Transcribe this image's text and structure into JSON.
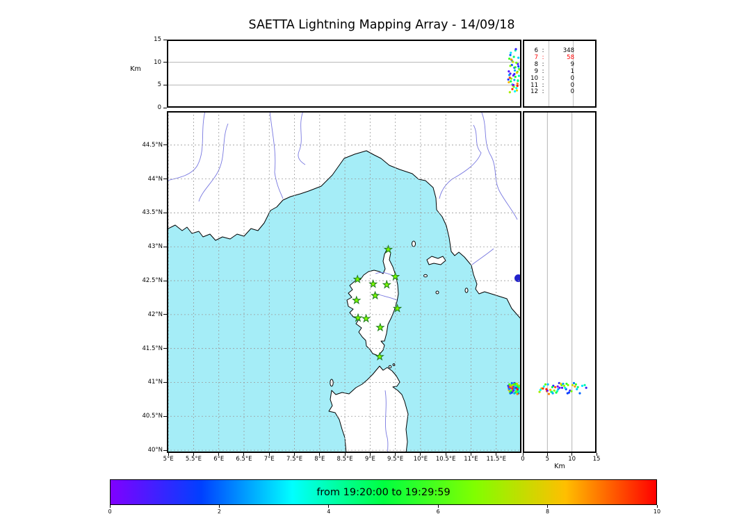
{
  "title": "SAETTA Lightning Mapping Array - 14/09/18",
  "colors": {
    "sea": "#a5edf7",
    "land": "#ffffff",
    "coastline": "#000000",
    "river": "#7878e0",
    "lake": "#2121cc",
    "grid_dashed": "#9a9a9a",
    "grid_solid": "#b4b4b4",
    "frame": "#000000",
    "station_fill": "#7CFC00",
    "station_edge": "#1d7a1d",
    "highlight_text": "#ff0000"
  },
  "chart_data": {
    "type": "scatter",
    "title": "SAETTA Lightning Mapping Array - 14/09/18",
    "date": "14/09/18",
    "top_panel": {
      "x": "longitude",
      "y": "altitude_km"
    },
    "map_panel": {
      "x": "longitude",
      "y": "latitude"
    },
    "right_panel": {
      "x": "altitude_km",
      "y": "latitude"
    },
    "altitude_km": {
      "label": "Km",
      "range": [
        0,
        15
      ],
      "ticks": [
        0,
        5,
        10,
        15
      ],
      "gridlines": [
        5,
        10
      ]
    },
    "map": {
      "lon_range": [
        4.97,
        12.0
      ],
      "lat_range": [
        39.96,
        45.0
      ],
      "grid_style": "dashed",
      "lat_tick_labels": [
        "44.5°N",
        "44°N",
        "43.5°N",
        "43°N",
        "42.5°N",
        "42°N",
        "41.5°N",
        "41°N",
        "40.5°N",
        "40°N"
      ],
      "lon_tick_labels": [
        "5°E",
        "5.5°E",
        "6°E",
        "6.5°E",
        "7°E",
        "7.5°E",
        "8°E",
        "8.5°E",
        "9°E",
        "9.5°E",
        "10°E",
        "10.5°E",
        "11°E",
        "11.5°E"
      ]
    },
    "counts": [
      {
        "label": "6",
        "value": "348",
        "highlight": false
      },
      {
        "label": "7",
        "value": "58",
        "highlight": true
      },
      {
        "label": "8",
        "value": "9",
        "highlight": false
      },
      {
        "label": "9",
        "value": "1",
        "highlight": false
      },
      {
        "label": "10",
        "value": "0",
        "highlight": false
      },
      {
        "label": "11",
        "value": "0",
        "highlight": false
      },
      {
        "label": "12",
        "value": "0",
        "highlight": false
      }
    ],
    "stations_lonlat": [
      [
        9.36,
        42.96
      ],
      [
        8.75,
        42.52
      ],
      [
        9.06,
        42.45
      ],
      [
        9.33,
        42.44
      ],
      [
        9.5,
        42.56
      ],
      [
        8.73,
        42.21
      ],
      [
        9.1,
        42.28
      ],
      [
        9.54,
        42.09
      ],
      [
        8.76,
        41.95
      ],
      [
        8.92,
        41.94
      ],
      [
        9.2,
        41.81
      ],
      [
        9.19,
        41.38
      ]
    ],
    "sources_lon_lat_altkm_min": [
      [
        11.74,
        40.95,
        6.2,
        1.2
      ],
      [
        11.78,
        40.92,
        7.5,
        0.4
      ],
      [
        11.82,
        40.97,
        5.1,
        2.8
      ],
      [
        11.86,
        40.9,
        8.8,
        1.9
      ],
      [
        11.9,
        40.94,
        4.3,
        3.5
      ],
      [
        11.93,
        40.88,
        9.6,
        0.8
      ],
      [
        11.77,
        40.86,
        3.4,
        7.2
      ],
      [
        11.81,
        40.99,
        10.4,
        2.2
      ],
      [
        11.85,
        40.93,
        11.2,
        4.6
      ],
      [
        11.88,
        40.85,
        6.8,
        5.3
      ],
      [
        11.92,
        40.96,
        7.9,
        6.1
      ],
      [
        11.75,
        40.89,
        5.6,
        8.4
      ],
      [
        11.79,
        40.95,
        12.1,
        3.1
      ],
      [
        11.83,
        40.87,
        4.9,
        9.0
      ],
      [
        11.87,
        40.98,
        8.2,
        2.5
      ],
      [
        11.91,
        40.91,
        3.8,
        7.8
      ],
      [
        11.94,
        40.84,
        9.1,
        1.5
      ],
      [
        11.76,
        40.97,
        10.8,
        5.8
      ],
      [
        11.8,
        40.88,
        6.4,
        6.9
      ],
      [
        11.84,
        40.94,
        7.1,
        0.2
      ],
      [
        11.88,
        40.96,
        12.6,
        4.1
      ],
      [
        11.92,
        40.83,
        5.3,
        8.9
      ],
      [
        11.95,
        40.92,
        8.6,
        3.8
      ],
      [
        11.78,
        40.84,
        11.6,
        2.0
      ],
      [
        11.82,
        40.91,
        4.1,
        9.6
      ],
      [
        11.86,
        40.99,
        7.4,
        1.1
      ],
      [
        11.9,
        40.87,
        9.9,
        6.5
      ],
      [
        11.93,
        40.93,
        6.0,
        4.9
      ],
      [
        11.75,
        40.92,
        8.0,
        0.6
      ],
      [
        11.79,
        40.86,
        5.8,
        5.1
      ],
      [
        11.83,
        40.96,
        10.1,
        7.5
      ],
      [
        11.87,
        40.89,
        3.6,
        3.3
      ],
      [
        11.91,
        40.98,
        7.7,
        8.1
      ],
      [
        11.94,
        40.9,
        11.0,
        2.9
      ],
      [
        11.77,
        40.93,
        6.6,
        9.3
      ],
      [
        11.81,
        40.85,
        9.4,
        1.7
      ],
      [
        11.85,
        40.97,
        4.6,
        6.3
      ],
      [
        11.89,
        40.92,
        12.9,
        0.9
      ],
      [
        11.93,
        40.86,
        5.9,
        4.4
      ],
      [
        11.96,
        40.95,
        8.4,
        7.0
      ],
      [
        11.76,
        40.9,
        7.2,
        2.4
      ],
      [
        11.8,
        40.94,
        10.6,
        8.7
      ],
      [
        11.84,
        40.88,
        5.0,
        0.3
      ],
      [
        11.88,
        40.98,
        8.9,
        5.6
      ],
      [
        11.92,
        40.9,
        4.8,
        9.8
      ],
      [
        11.95,
        40.87,
        7.0,
        3.9
      ],
      [
        11.78,
        40.96,
        9.2,
        6.7
      ],
      [
        11.86,
        40.84,
        6.1,
        2.6
      ]
    ],
    "colorbar": {
      "label": "from 19:20:00 to 19:29:59",
      "start_time": "19:20:00",
      "end_time": "19:29:59",
      "range_minutes": [
        0,
        10
      ],
      "ticks": [
        0,
        2,
        4,
        6,
        8,
        10
      ],
      "stops": [
        "#8000ff",
        "#0040ff",
        "#00ffff",
        "#00ff40",
        "#80ff00",
        "#ffbf00",
        "#ff0000"
      ]
    }
  }
}
